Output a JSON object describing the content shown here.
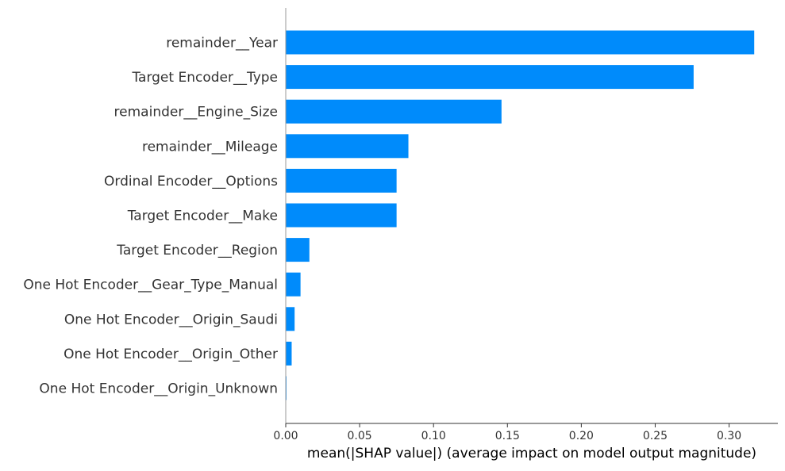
{
  "chart_data": {
    "type": "bar",
    "orientation": "horizontal",
    "categories": [
      "remainder__Year",
      "Target Encoder__Type",
      "remainder__Engine_Size",
      "remainder__Mileage",
      "Ordinal Encoder__Options",
      "Target Encoder__Make",
      "Target Encoder__Region",
      "One Hot Encoder__Gear_Type_Manual",
      "One Hot Encoder__Origin_Saudi",
      "One Hot Encoder__Origin_Other",
      "One Hot Encoder__Origin_Unknown"
    ],
    "values": [
      0.317,
      0.276,
      0.146,
      0.083,
      0.075,
      0.075,
      0.016,
      0.01,
      0.006,
      0.004,
      0.0005
    ],
    "xlabel": "mean(|SHAP value|) (average impact on model output magnitude)",
    "ylabel": "",
    "title": "",
    "xlim": [
      0,
      0.333
    ],
    "xticks": [
      0,
      0.05,
      0.1,
      0.15,
      0.2,
      0.25,
      0.3
    ],
    "xtick_labels": [
      "0.00",
      "0.05",
      "0.10",
      "0.15",
      "0.20",
      "0.25",
      "0.30"
    ],
    "grid": false,
    "bar_color": "#008bfb",
    "label_color": "#333333",
    "axis_color": "#333333"
  }
}
